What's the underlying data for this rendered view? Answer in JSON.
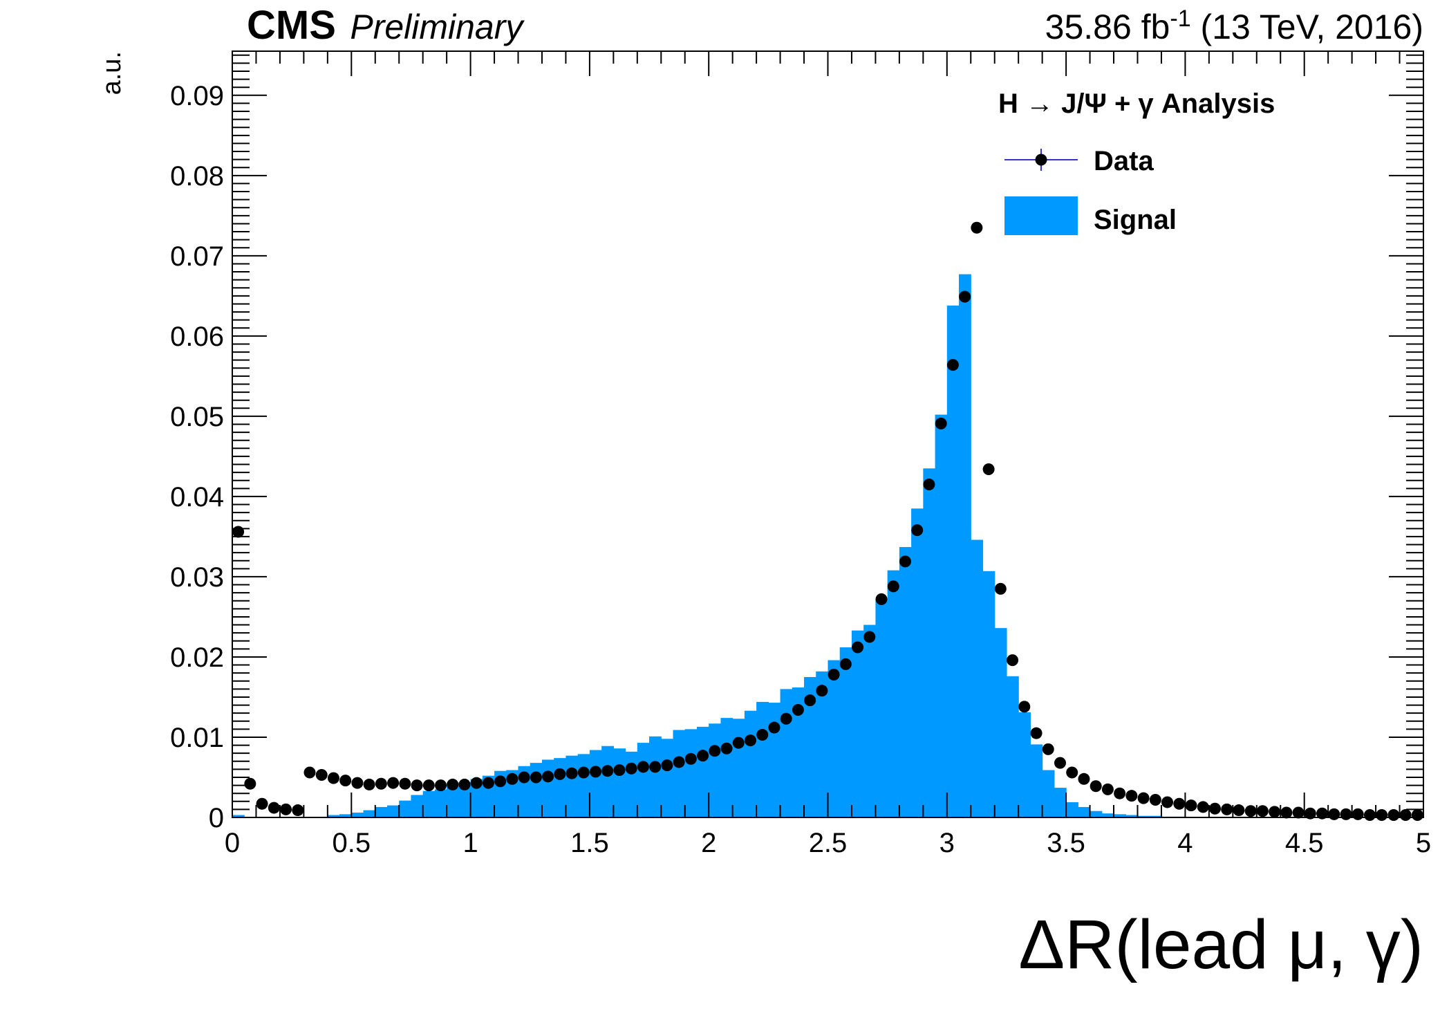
{
  "header": {
    "experiment": "CMS",
    "status": "Preliminary",
    "lumi_value": "35.86 fb",
    "lumi_exponent": "-1",
    "lumi_rest": " (13 TeV, 2016)"
  },
  "colors": {
    "signal_fill": "#0099ff",
    "data_marker": "#000000",
    "data_line": "#3333cc",
    "frame": "#000000"
  },
  "chart_data": {
    "type": "bar",
    "title": "",
    "xlabel": "ΔR(lead μ, γ)",
    "ylabel": "a.u.",
    "xlim": [
      0,
      5
    ],
    "ylim": [
      0,
      0.0955
    ],
    "x_ticks": [
      "0",
      "0.5",
      "1",
      "1.5",
      "2",
      "2.5",
      "3",
      "3.5",
      "4",
      "4.5",
      "5"
    ],
    "y_ticks": [
      "0",
      "0.01",
      "0.02",
      "0.03",
      "0.04",
      "0.05",
      "0.06",
      "0.07",
      "0.08",
      "0.09"
    ],
    "legend": {
      "title": "H → J/Ψ + γ Analysis",
      "placement": "top-right",
      "entries": [
        {
          "name": "Data",
          "style": "marker"
        },
        {
          "name": "Signal",
          "style": "fill"
        }
      ]
    },
    "bin_width": 0.05,
    "series": [
      {
        "name": "Signal",
        "style": "filled-histogram",
        "x_low": [
          0,
          0.05,
          0.1,
          0.15,
          0.2,
          0.25,
          0.3,
          0.35,
          0.4,
          0.45,
          0.5,
          0.55,
          0.6,
          0.65,
          0.7,
          0.75,
          0.8,
          0.85,
          0.9,
          0.95,
          1.0,
          1.05,
          1.1,
          1.15,
          1.2,
          1.25,
          1.3,
          1.35,
          1.4,
          1.45,
          1.5,
          1.55,
          1.6,
          1.65,
          1.7,
          1.75,
          1.8,
          1.85,
          1.9,
          1.95,
          2.0,
          2.05,
          2.1,
          2.15,
          2.2,
          2.25,
          2.3,
          2.35,
          2.4,
          2.45,
          2.5,
          2.55,
          2.6,
          2.65,
          2.7,
          2.75,
          2.8,
          2.85,
          2.9,
          2.95,
          3.0,
          3.05,
          3.1,
          3.15,
          3.2,
          3.25,
          3.3,
          3.35,
          3.4,
          3.45,
          3.5,
          3.55,
          3.6,
          3.65,
          3.7,
          3.75,
          3.8,
          3.85,
          3.9,
          3.95
        ],
        "values": [
          0.0003,
          0.0,
          0.0,
          0.0,
          0.0,
          0.0,
          0.0,
          0.0,
          0.0003,
          0.0004,
          0.0006,
          0.0009,
          0.0013,
          0.0015,
          0.0021,
          0.0028,
          0.0033,
          0.0035,
          0.0043,
          0.0044,
          0.0048,
          0.0052,
          0.0058,
          0.0059,
          0.0064,
          0.0068,
          0.0072,
          0.0074,
          0.0077,
          0.0079,
          0.0084,
          0.0089,
          0.0086,
          0.0082,
          0.0093,
          0.0101,
          0.0098,
          0.0109,
          0.011,
          0.0113,
          0.0117,
          0.0124,
          0.0123,
          0.0133,
          0.0144,
          0.0143,
          0.016,
          0.0162,
          0.0175,
          0.0182,
          0.0196,
          0.0212,
          0.0233,
          0.024,
          0.0272,
          0.0308,
          0.0337,
          0.0385,
          0.0435,
          0.0502,
          0.0638,
          0.0677,
          0.0346,
          0.0307,
          0.0236,
          0.0176,
          0.0131,
          0.0091,
          0.0059,
          0.0037,
          0.0019,
          0.0013,
          0.0008,
          0.0005,
          0.0004,
          0.0003,
          0.0002,
          0.0002,
          0.0001,
          0.0001
        ]
      },
      {
        "name": "Data",
        "style": "points",
        "x": [
          0.025,
          0.075,
          0.125,
          0.175,
          0.225,
          0.275,
          0.325,
          0.375,
          0.425,
          0.475,
          0.525,
          0.575,
          0.625,
          0.675,
          0.725,
          0.775,
          0.825,
          0.875,
          0.925,
          0.975,
          1.025,
          1.075,
          1.125,
          1.175,
          1.225,
          1.275,
          1.325,
          1.375,
          1.425,
          1.475,
          1.525,
          1.575,
          1.625,
          1.675,
          1.725,
          1.775,
          1.825,
          1.875,
          1.925,
          1.975,
          2.025,
          2.075,
          2.125,
          2.175,
          2.225,
          2.275,
          2.325,
          2.375,
          2.425,
          2.475,
          2.525,
          2.575,
          2.625,
          2.675,
          2.725,
          2.775,
          2.825,
          2.875,
          2.925,
          2.975,
          3.025,
          3.075,
          3.125,
          3.175,
          3.225,
          3.275,
          3.325,
          3.375,
          3.425,
          3.475,
          3.525,
          3.575,
          3.625,
          3.675,
          3.725,
          3.775,
          3.825,
          3.875,
          3.925,
          3.975,
          4.025,
          4.075,
          4.125,
          4.175,
          4.225,
          4.275,
          4.325,
          4.375,
          4.425,
          4.475,
          4.525,
          4.575,
          4.625,
          4.675,
          4.725,
          4.775,
          4.825,
          4.875,
          4.925,
          4.975
        ],
        "values": [
          0.0356,
          0.0042,
          0.0017,
          0.0012,
          0.001,
          0.0009,
          0.0056,
          0.0053,
          0.0049,
          0.0046,
          0.0043,
          0.0041,
          0.0042,
          0.0043,
          0.0042,
          0.004,
          0.004,
          0.004,
          0.0041,
          0.0041,
          0.0043,
          0.0043,
          0.0045,
          0.0048,
          0.005,
          0.005,
          0.0051,
          0.0054,
          0.0055,
          0.0056,
          0.0057,
          0.0058,
          0.0059,
          0.0061,
          0.0063,
          0.0063,
          0.0065,
          0.0069,
          0.0073,
          0.0077,
          0.0083,
          0.0086,
          0.0093,
          0.0096,
          0.0103,
          0.0112,
          0.0123,
          0.0134,
          0.0146,
          0.0158,
          0.0178,
          0.0191,
          0.0212,
          0.0225,
          0.0272,
          0.0288,
          0.0319,
          0.0358,
          0.0415,
          0.0491,
          0.0564,
          0.0649,
          0.0735,
          0.0434,
          0.0285,
          0.0196,
          0.0138,
          0.0105,
          0.0085,
          0.0068,
          0.0056,
          0.0048,
          0.0039,
          0.0035,
          0.003,
          0.0027,
          0.0024,
          0.0022,
          0.0019,
          0.0017,
          0.0015,
          0.0013,
          0.0011,
          0.001,
          0.0009,
          0.0008,
          0.0008,
          0.0007,
          0.0006,
          0.0006,
          0.0005,
          0.0005,
          0.0004,
          0.0004,
          0.0004,
          0.0003,
          0.0003,
          0.0003,
          0.0003,
          0.0003
        ]
      }
    ]
  }
}
